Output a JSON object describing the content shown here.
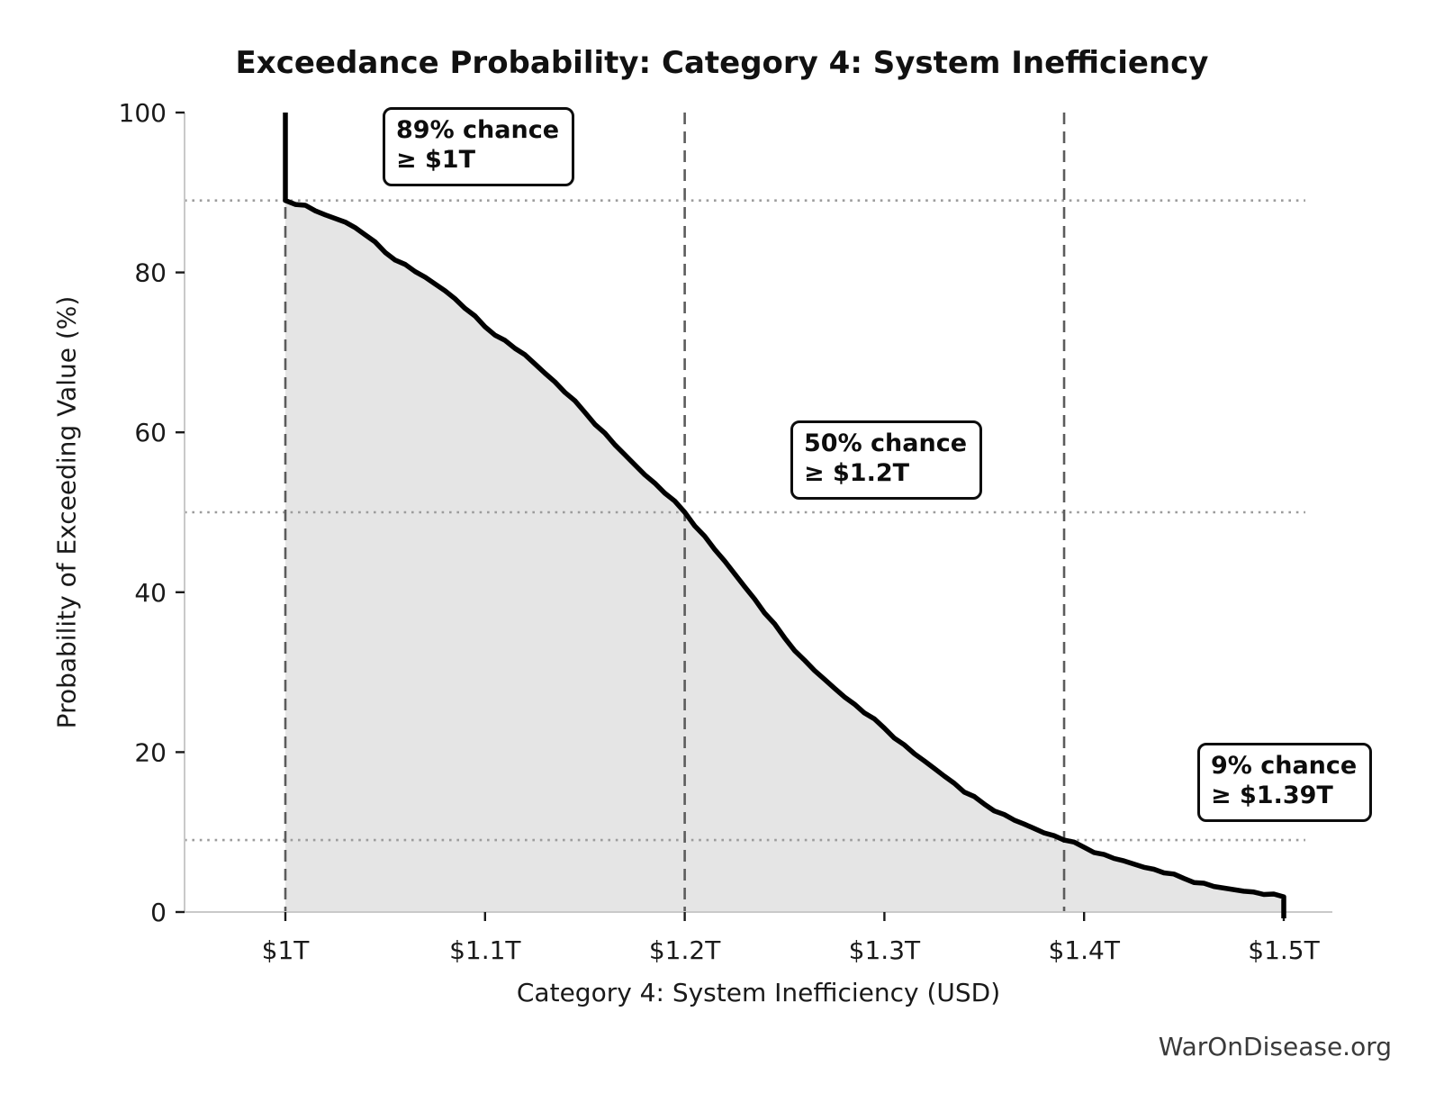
{
  "page": {
    "watermark": "WarOnDisease.org"
  },
  "chart_data": {
    "type": "area",
    "title": "Exceedance Probability: Category 4: System Inefficiency",
    "xlabel": "Category 4: System Inefficiency (USD)",
    "ylabel": "Probability of Exceeding Value (%)",
    "x_unit": "trillions of USD",
    "xlim": [
      0.95,
      1.525
    ],
    "ylim": [
      0,
      100
    ],
    "grid": "off",
    "legend": "none",
    "line_color": "#000000",
    "fill_color": "#e5e5e5",
    "dashed_vline_color": "#5c5c5c",
    "dotted_hline_color": "#9c9c9c",
    "x_ticks": [
      {
        "value": 1.0,
        "label": "$1T"
      },
      {
        "value": 1.1,
        "label": "$1.1T"
      },
      {
        "value": 1.2,
        "label": "$1.2T"
      },
      {
        "value": 1.3,
        "label": "$1.3T"
      },
      {
        "value": 1.4,
        "label": "$1.4T"
      },
      {
        "value": 1.5,
        "label": "$1.5T"
      }
    ],
    "y_ticks": [
      {
        "value": 0,
        "label": "0"
      },
      {
        "value": 20,
        "label": "20"
      },
      {
        "value": 40,
        "label": "40"
      },
      {
        "value": 60,
        "label": "60"
      },
      {
        "value": 80,
        "label": "80"
      },
      {
        "value": 100,
        "label": "100"
      }
    ],
    "reference_vlines": [
      1.0,
      1.2,
      1.39
    ],
    "reference_hlines": [
      89,
      50,
      9
    ],
    "curve_start": [
      1.0,
      100
    ],
    "curve_end": [
      1.5,
      0
    ],
    "points": [
      [
        1.0,
        89.0
      ],
      [
        1.01,
        88.4
      ],
      [
        1.02,
        87.2
      ],
      [
        1.03,
        86.3
      ],
      [
        1.04,
        84.7
      ],
      [
        1.05,
        82.5
      ],
      [
        1.06,
        81.0
      ],
      [
        1.07,
        79.4
      ],
      [
        1.08,
        77.7
      ],
      [
        1.09,
        75.5
      ],
      [
        1.1,
        73.2
      ],
      [
        1.11,
        71.5
      ],
      [
        1.12,
        69.7
      ],
      [
        1.13,
        67.4
      ],
      [
        1.14,
        65.0
      ],
      [
        1.15,
        62.5
      ],
      [
        1.16,
        59.9
      ],
      [
        1.17,
        57.2
      ],
      [
        1.18,
        54.7
      ],
      [
        1.19,
        52.4
      ],
      [
        1.2,
        50.0
      ],
      [
        1.21,
        47.0
      ],
      [
        1.22,
        43.9
      ],
      [
        1.23,
        40.7
      ],
      [
        1.24,
        37.4
      ],
      [
        1.25,
        34.3
      ],
      [
        1.26,
        31.5
      ],
      [
        1.27,
        29.1
      ],
      [
        1.28,
        26.9
      ],
      [
        1.29,
        24.9
      ],
      [
        1.3,
        23.0
      ],
      [
        1.31,
        20.9
      ],
      [
        1.32,
        18.9
      ],
      [
        1.33,
        17.0
      ],
      [
        1.34,
        15.0
      ],
      [
        1.35,
        13.5
      ],
      [
        1.36,
        12.2
      ],
      [
        1.37,
        11.0
      ],
      [
        1.38,
        9.9
      ],
      [
        1.39,
        9.0
      ],
      [
        1.4,
        8.1
      ],
      [
        1.41,
        7.2
      ],
      [
        1.42,
        6.4
      ],
      [
        1.43,
        5.6
      ],
      [
        1.44,
        4.9
      ],
      [
        1.45,
        4.2
      ],
      [
        1.46,
        3.6
      ],
      [
        1.47,
        3.0
      ],
      [
        1.48,
        2.6
      ],
      [
        1.49,
        2.2
      ],
      [
        1.5,
        1.9
      ]
    ],
    "annotations": [
      {
        "line1": "89% chance",
        "line2": "≥ $1T",
        "x": 1.0,
        "y": 89
      },
      {
        "line1": "50% chance",
        "line2": "≥ $1.2T",
        "x": 1.2,
        "y": 50
      },
      {
        "line1": "9% chance",
        "line2": "≥ $1.39T",
        "x": 1.39,
        "y": 9
      }
    ]
  }
}
